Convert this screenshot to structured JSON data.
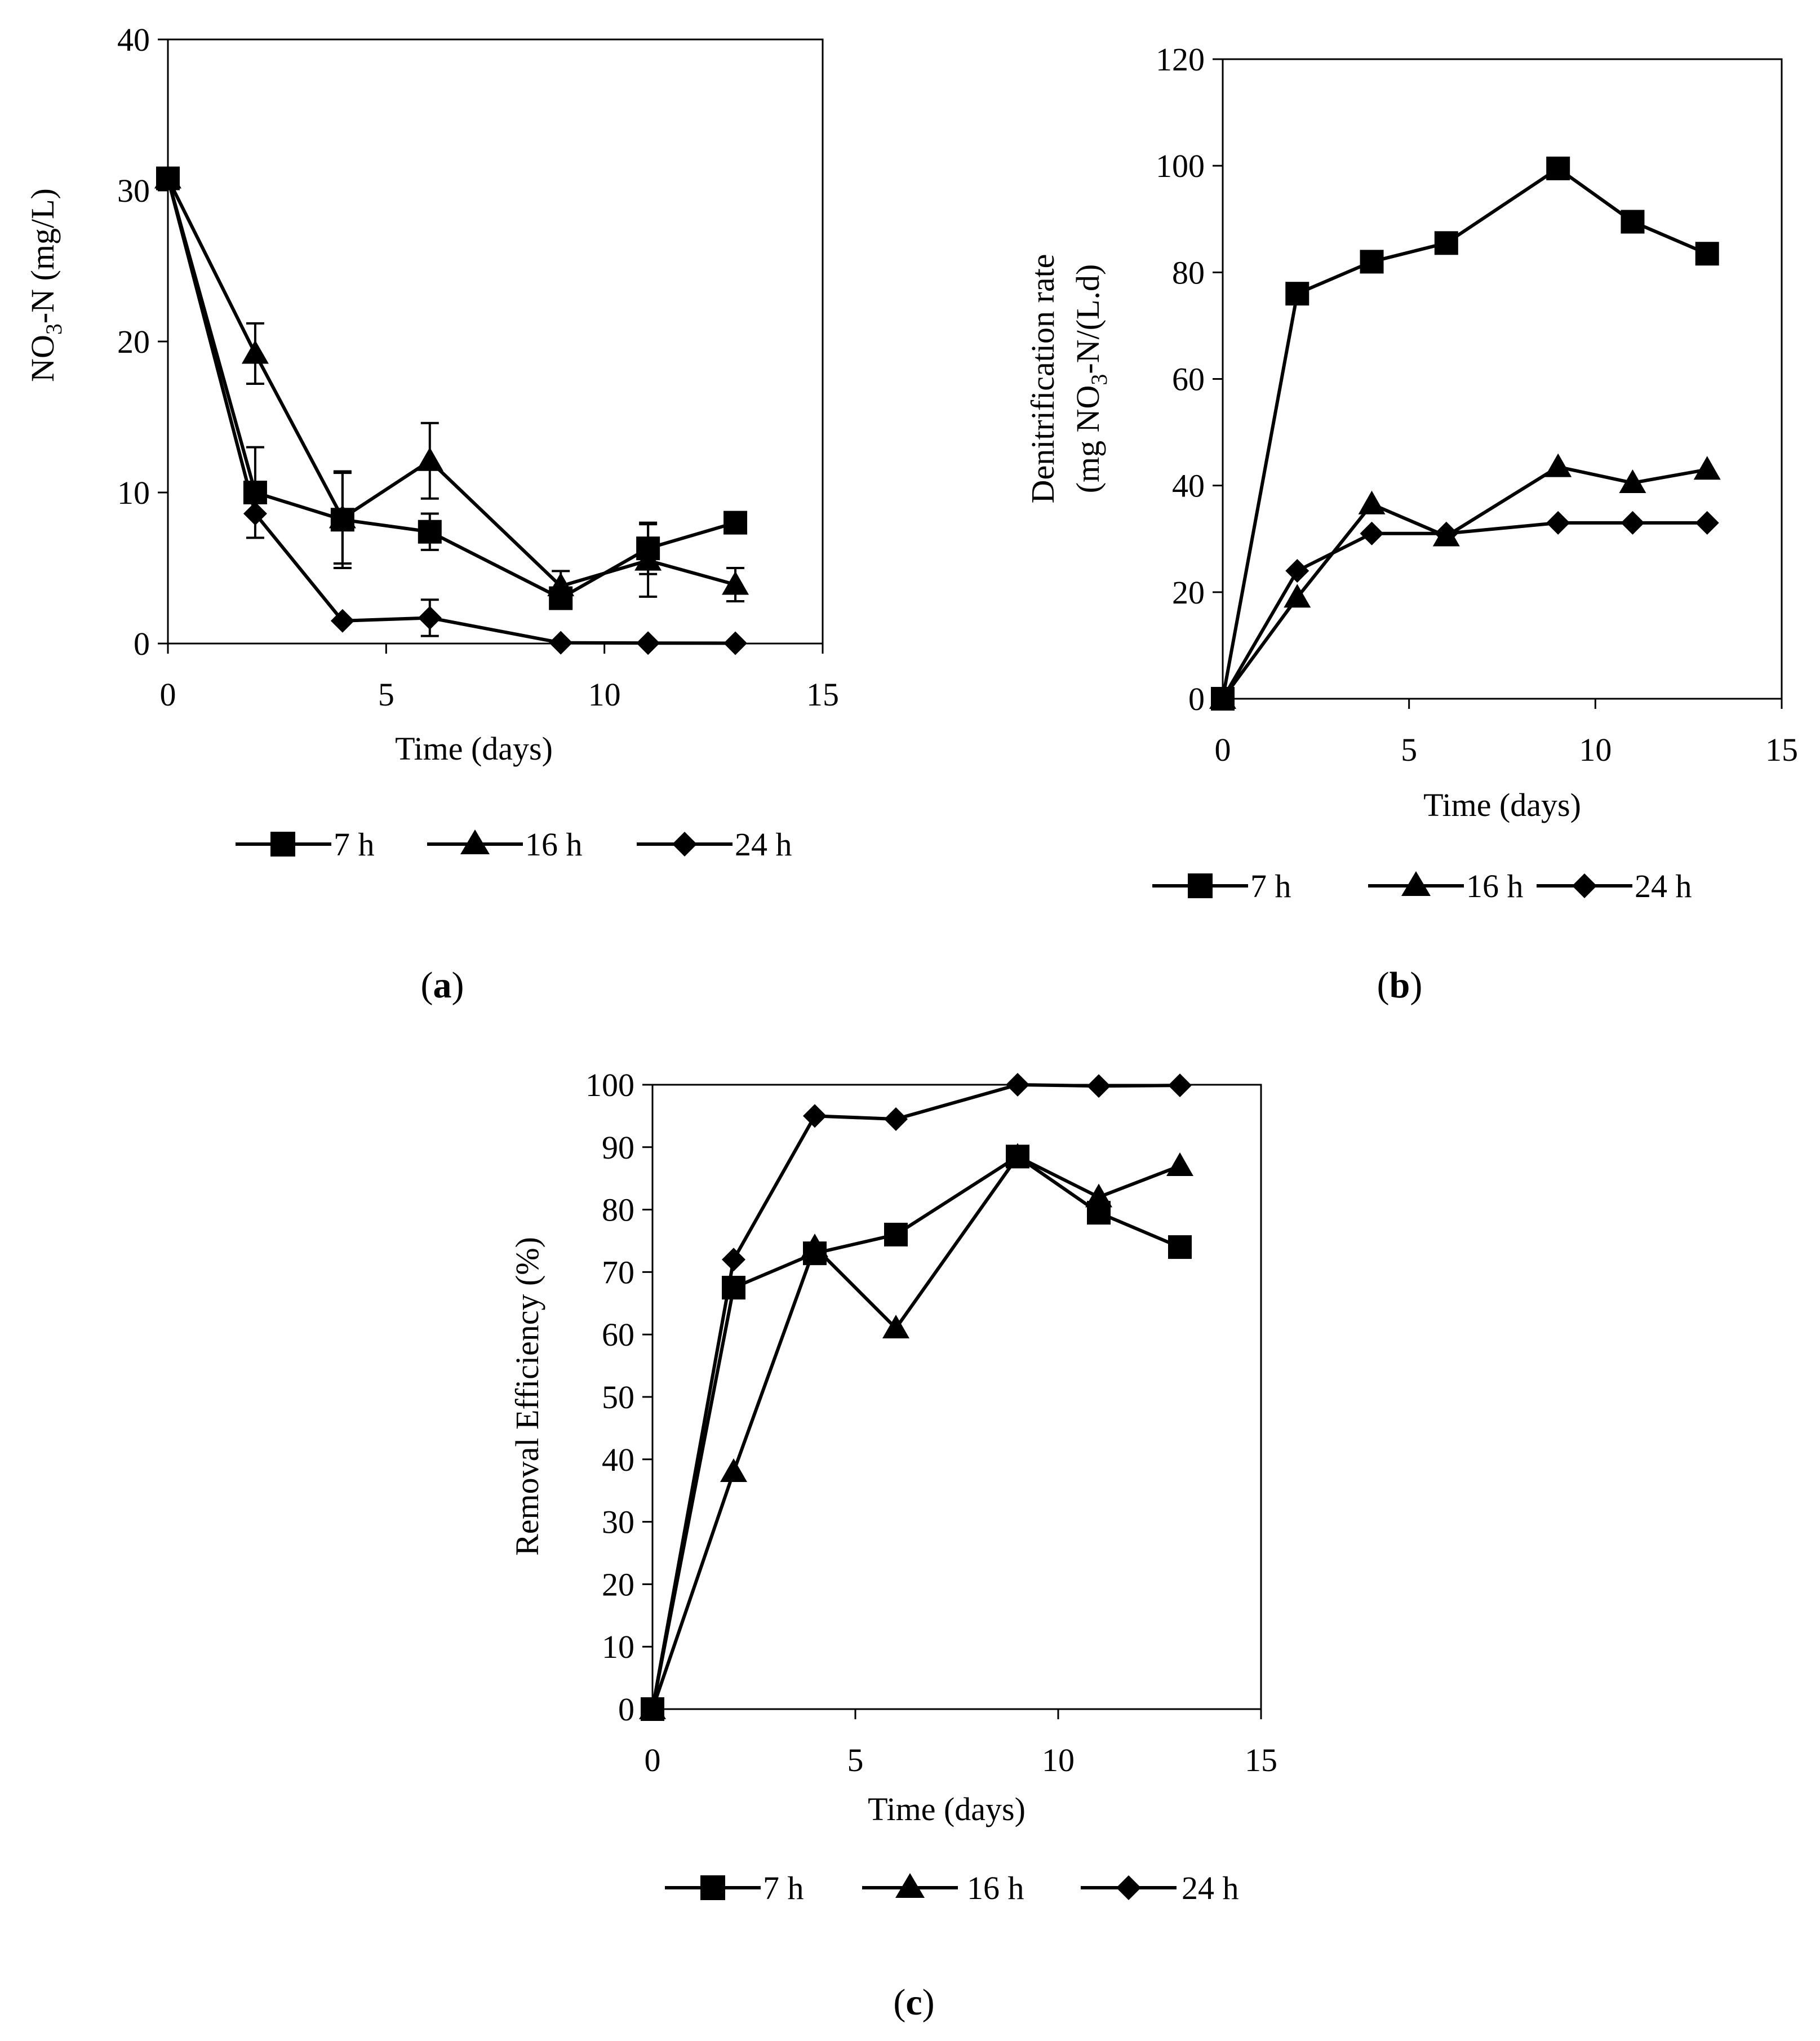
{
  "chart_data": [
    {
      "type": "line",
      "panel_label": "a",
      "title": "",
      "xlabel": "Time (days)",
      "ylabel": {
        "main": "NO",
        "sub": "3",
        "rest": "-N (mg/L)"
      },
      "xlim": [
        0,
        15
      ],
      "ylim": [
        0,
        40
      ],
      "xticks": [
        0,
        5,
        10,
        15
      ],
      "yticks": [
        0,
        10,
        20,
        30,
        40
      ],
      "x": [
        0,
        2,
        4,
        6,
        9,
        11,
        13
      ],
      "grid": false,
      "legend": "bottom",
      "series": [
        {
          "name": "7 h",
          "marker": "square",
          "values": [
            30.8,
            10.0,
            8.2,
            7.4,
            3.0,
            6.3,
            8.0
          ],
          "errors": [
            0,
            3.0,
            3.2,
            1.2,
            0,
            1.7,
            0
          ]
        },
        {
          "name": "16 h",
          "marker": "triangle",
          "values": [
            30.8,
            19.2,
            8.3,
            12.1,
            3.8,
            5.5,
            3.9
          ],
          "errors": [
            0,
            2.0,
            3.0,
            2.5,
            1.0,
            2.4,
            1.1
          ]
        },
        {
          "name": "24 h",
          "marker": "diamond",
          "values": [
            30.8,
            8.6,
            1.5,
            1.7,
            0.05,
            0.03,
            0.02
          ],
          "errors": [
            0,
            0,
            0,
            1.2,
            0,
            0,
            0
          ]
        }
      ]
    },
    {
      "type": "line",
      "panel_label": "b",
      "title": "",
      "xlabel": "Time (days)",
      "ylabel": {
        "line1": "Denitrification rate",
        "pre": "(mg NO",
        "sub": "3",
        "rest": "-N/(L.d)"
      },
      "xlim": [
        0,
        15
      ],
      "ylim": [
        0,
        120
      ],
      "xticks": [
        0,
        5,
        10,
        15
      ],
      "yticks": [
        0,
        20,
        40,
        60,
        80,
        100,
        120
      ],
      "x": [
        0,
        2,
        4,
        6,
        9,
        11,
        13
      ],
      "grid": false,
      "legend": "bottom",
      "series": [
        {
          "name": "7 h",
          "marker": "square",
          "values": [
            0,
            76,
            82,
            85.5,
            99.5,
            89.5,
            83.5
          ]
        },
        {
          "name": "16 h",
          "marker": "triangle",
          "values": [
            0,
            19,
            36.5,
            30.5,
            43.5,
            40.5,
            43
          ]
        },
        {
          "name": "24 h",
          "marker": "diamond",
          "values": [
            0,
            24,
            31,
            31,
            33,
            33,
            33
          ]
        }
      ]
    },
    {
      "type": "line",
      "panel_label": "c",
      "title": "",
      "xlabel": "Time (days)",
      "ylabel": "Removal Efficiency (%)",
      "xlim": [
        0,
        15
      ],
      "ylim": [
        0,
        100
      ],
      "xticks": [
        0,
        5,
        10,
        15
      ],
      "yticks": [
        0,
        10,
        20,
        30,
        40,
        50,
        60,
        70,
        80,
        90,
        100
      ],
      "x": [
        0,
        2,
        4,
        6,
        9,
        11,
        13
      ],
      "grid": false,
      "legend": "bottom",
      "series": [
        {
          "name": "7 h",
          "marker": "square",
          "values": [
            0,
            67.5,
            73,
            76,
            88.5,
            79.5,
            74
          ]
        },
        {
          "name": "16 h",
          "marker": "triangle",
          "values": [
            0,
            38,
            74,
            61,
            88.5,
            82,
            87
          ]
        },
        {
          "name": "24 h",
          "marker": "diamond",
          "values": [
            0,
            72,
            95,
            94.5,
            100,
            99.8,
            99.9
          ]
        }
      ]
    }
  ]
}
